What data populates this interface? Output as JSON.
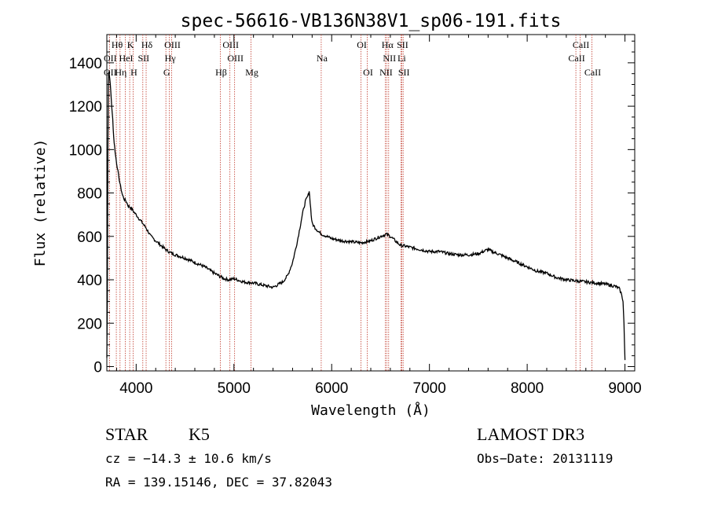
{
  "chart_data": {
    "type": "line",
    "title": "spec-56616-VB136N38V1_sp06-191.fits",
    "xlabel": "Wavelength (Å)",
    "ylabel": "Flux (relative)",
    "xlim": [
      3700,
      9100
    ],
    "ylim": [
      -20,
      1530
    ],
    "xticks": [
      4000,
      5000,
      6000,
      7000,
      8000,
      9000
    ],
    "yticks": [
      0,
      200,
      400,
      600,
      800,
      1000,
      1200,
      1400
    ],
    "series": [
      {
        "name": "flux",
        "x": [
          3700,
          3705,
          3710,
          3715,
          3720,
          3730,
          3740,
          3750,
          3760,
          3770,
          3780,
          3790,
          3800,
          3820,
          3840,
          3860,
          3880,
          3900,
          3920,
          3950,
          3980,
          4000,
          4050,
          4100,
          4150,
          4200,
          4250,
          4300,
          4350,
          4400,
          4500,
          4600,
          4700,
          4800,
          4860,
          4900,
          4950,
          5000,
          5100,
          5200,
          5300,
          5400,
          5500,
          5550,
          5600,
          5650,
          5700,
          5730,
          5760,
          5770,
          5780,
          5790,
          5800,
          5830,
          5870,
          5900,
          5950,
          6000,
          6100,
          6200,
          6300,
          6400,
          6500,
          6560,
          6600,
          6650,
          6700,
          6800,
          6900,
          7000,
          7100,
          7200,
          7300,
          7400,
          7500,
          7600,
          7640,
          7700,
          7800,
          7900,
          8000,
          8100,
          8200,
          8300,
          8400,
          8500,
          8600,
          8700,
          8800,
          8850,
          8900,
          8940,
          8960,
          8980,
          8990,
          9000
        ],
        "y": [
          40,
          300,
          900,
          1300,
          1360,
          1330,
          1270,
          1200,
          1140,
          1060,
          1010,
          970,
          940,
          880,
          830,
          790,
          770,
          760,
          740,
          730,
          710,
          700,
          670,
          640,
          600,
          580,
          560,
          540,
          525,
          515,
          500,
          480,
          460,
          430,
          415,
          405,
          400,
          405,
          390,
          385,
          375,
          365,
          390,
          420,
          480,
          580,
          700,
          760,
          790,
          810,
          760,
          700,
          660,
          640,
          620,
          610,
          600,
          590,
          580,
          575,
          570,
          580,
          600,
          610,
          600,
          580,
          560,
          550,
          540,
          530,
          530,
          520,
          515,
          515,
          520,
          540,
          530,
          520,
          500,
          480,
          460,
          440,
          430,
          410,
          400,
          395,
          390,
          385,
          380,
          375,
          370,
          360,
          340,
          300,
          200,
          30
        ]
      }
    ],
    "lines_row1": [
      {
        "label": "Hθ",
        "wl": 3797
      },
      {
        "label": "K",
        "wl": 3934
      },
      {
        "label": "Hδ",
        "wl": 4102
      },
      {
        "label": "OIII",
        "wl": 4363
      },
      {
        "label": "OIII",
        "wl": 4959
      },
      {
        "label": "OI",
        "wl": 6300
      },
      {
        "label": "Hα",
        "wl": 6563
      },
      {
        "label": "SII",
        "wl": 6717
      },
      {
        "label": "CaII",
        "wl": 8542
      }
    ],
    "lines_row2": [
      {
        "label": "OII",
        "wl": 3727
      },
      {
        "label": "HeI",
        "wl": 3889
      },
      {
        "label": "SII",
        "wl": 4068
      },
      {
        "label": "Hγ",
        "wl": 4340
      },
      {
        "label": "OIII",
        "wl": 5007
      },
      {
        "label": "Na",
        "wl": 5893
      },
      {
        "label": "NII",
        "wl": 6583
      },
      {
        "label": "Li",
        "wl": 6708
      },
      {
        "label": "CaII",
        "wl": 8498
      }
    ],
    "lines_row3": [
      {
        "label": "OII",
        "wl": 3727
      },
      {
        "label": "Hη",
        "wl": 3835
      },
      {
        "label": "H",
        "wl": 3969
      },
      {
        "label": "G",
        "wl": 4304
      },
      {
        "label": "Hβ",
        "wl": 4861
      },
      {
        "label": "Mg",
        "wl": 5175
      },
      {
        "label": "OI",
        "wl": 6364
      },
      {
        "label": "NII",
        "wl": 6548
      },
      {
        "label": "SII",
        "wl": 6731
      },
      {
        "label": "CaII",
        "wl": 8662
      }
    ]
  },
  "info": {
    "class": "STAR",
    "subclass": "K5",
    "survey": "LAMOST DR3",
    "cz": "cz = −14.3 ± 10.6 km/s",
    "obs_date": "Obs−Date: 20131119",
    "radec": "RA = 139.15146, DEC =  37.82043"
  }
}
